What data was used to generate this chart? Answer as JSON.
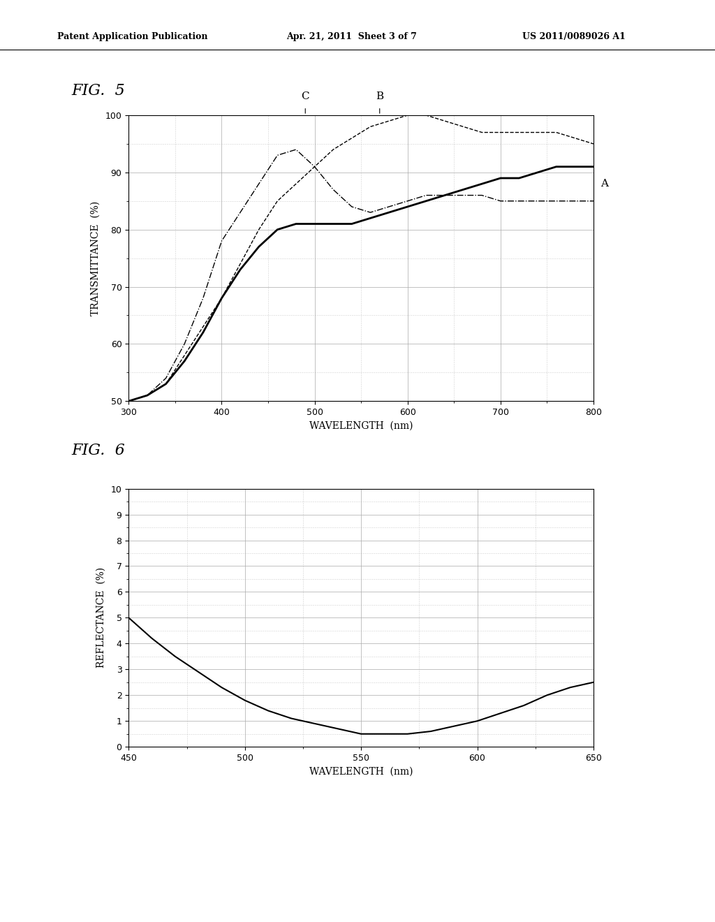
{
  "header_left": "Patent Application Publication",
  "header_mid": "Apr. 21, 2011  Sheet 3 of 7",
  "header_right": "US 2011/0089026 A1",
  "fig5_label": "FIG.  5",
  "fig6_label": "FIG.  6",
  "fig5": {
    "xlabel": "WAVELENGTH  (nm)",
    "ylabel": "TRANSMITTANCE  (%)",
    "xlim": [
      300,
      800
    ],
    "ylim": [
      50,
      100
    ],
    "xticks": [
      300,
      400,
      500,
      600,
      700,
      800
    ],
    "yticks": [
      50,
      60,
      70,
      80,
      90,
      100
    ],
    "label_A": "A",
    "label_B": "B",
    "label_C": "C",
    "curve_A_x": [
      300,
      320,
      340,
      360,
      380,
      400,
      420,
      440,
      460,
      480,
      500,
      520,
      540,
      560,
      580,
      600,
      620,
      640,
      660,
      680,
      700,
      720,
      740,
      760,
      780,
      800
    ],
    "curve_A_y": [
      50,
      51,
      53,
      57,
      62,
      68,
      73,
      77,
      80,
      81,
      81,
      81,
      81,
      82,
      83,
      84,
      85,
      86,
      87,
      88,
      89,
      89,
      90,
      91,
      91,
      91
    ],
    "curve_B_x": [
      300,
      320,
      340,
      360,
      380,
      400,
      420,
      440,
      460,
      480,
      500,
      520,
      540,
      560,
      580,
      600,
      620,
      640,
      660,
      680,
      700,
      720,
      740,
      760,
      780,
      800
    ],
    "curve_B_y": [
      50,
      51,
      53,
      58,
      63,
      68,
      74,
      80,
      85,
      88,
      91,
      94,
      96,
      98,
      99,
      100,
      100,
      99,
      98,
      97,
      97,
      97,
      97,
      97,
      96,
      95
    ],
    "curve_C_x": [
      300,
      320,
      340,
      360,
      380,
      400,
      420,
      440,
      460,
      480,
      500,
      520,
      540,
      560,
      580,
      600,
      620,
      640,
      660,
      680,
      700,
      720,
      740,
      760,
      780,
      800
    ],
    "curve_C_y": [
      50,
      51,
      54,
      60,
      68,
      78,
      83,
      88,
      93,
      94,
      91,
      87,
      84,
      83,
      84,
      85,
      86,
      86,
      86,
      86,
      85,
      85,
      85,
      85,
      85,
      85
    ]
  },
  "fig6": {
    "xlabel": "WAVELENGTH  (nm)",
    "ylabel": "REFLECTANCE  (%)",
    "xlim": [
      450,
      650
    ],
    "ylim": [
      0.0,
      10.0
    ],
    "xticks": [
      450,
      500,
      550,
      600,
      650
    ],
    "yticks": [
      0.0,
      1.0,
      2.0,
      3.0,
      4.0,
      5.0,
      6.0,
      7.0,
      8.0,
      9.0,
      10.0
    ],
    "curve_x": [
      450,
      460,
      470,
      480,
      490,
      500,
      510,
      520,
      530,
      540,
      550,
      560,
      570,
      580,
      590,
      600,
      610,
      620,
      630,
      640,
      650
    ],
    "curve_y": [
      5.0,
      4.2,
      3.5,
      2.9,
      2.3,
      1.8,
      1.4,
      1.1,
      0.9,
      0.7,
      0.5,
      0.5,
      0.5,
      0.6,
      0.8,
      1.0,
      1.3,
      1.6,
      2.0,
      2.3,
      2.5
    ]
  },
  "bg_color": "#ffffff",
  "line_color": "#000000",
  "grid_color": "#aaaaaa",
  "grid_ls_major": "-",
  "grid_ls_minor": ":"
}
